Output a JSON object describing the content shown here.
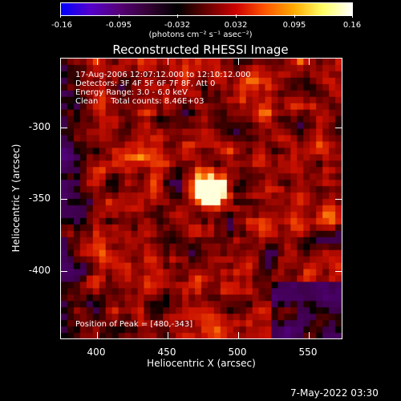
{
  "colorbar": {
    "tick_labels": [
      "-0.16",
      "-0.095",
      "-0.032",
      "0.032",
      "0.095",
      "0.16"
    ],
    "units": "(photons cm⁻² s⁻¹ asec⁻²)",
    "colors": [
      "#0000ff",
      "#5500cc",
      "#550077",
      "#330033",
      "#000000",
      "#660000",
      "#cc0000",
      "#ff5500",
      "#ffaa00",
      "#ffff66",
      "#ffffff"
    ]
  },
  "title": "Reconstructed RHESSI Image",
  "info": {
    "time_range": "17-Aug-2006 12:07:12.000 to 12:10:12.000",
    "detectors": "Detectors: 3F 4F 5F 6F 7F 8F, Att 0",
    "energy_range": "Energy Range: 3.0 - 6.0 keV",
    "clean_counts": "Clean     Total counts: 8.46E+03"
  },
  "peak_label": "Position of Peak = [480,-343]",
  "axes": {
    "xlabel": "Heliocentric X (arcsec)",
    "ylabel": "Heliocentric Y (arcsec)",
    "xticks": [
      "400",
      "450",
      "500",
      "550"
    ],
    "yticks": [
      "-300",
      "-350",
      "-400"
    ],
    "xlim": [
      378,
      570
    ],
    "ylim": [
      -445,
      -252
    ]
  },
  "peak": {
    "x": 480,
    "y": -343
  },
  "footer_timestamp": "7-May-2022 03:30"
}
